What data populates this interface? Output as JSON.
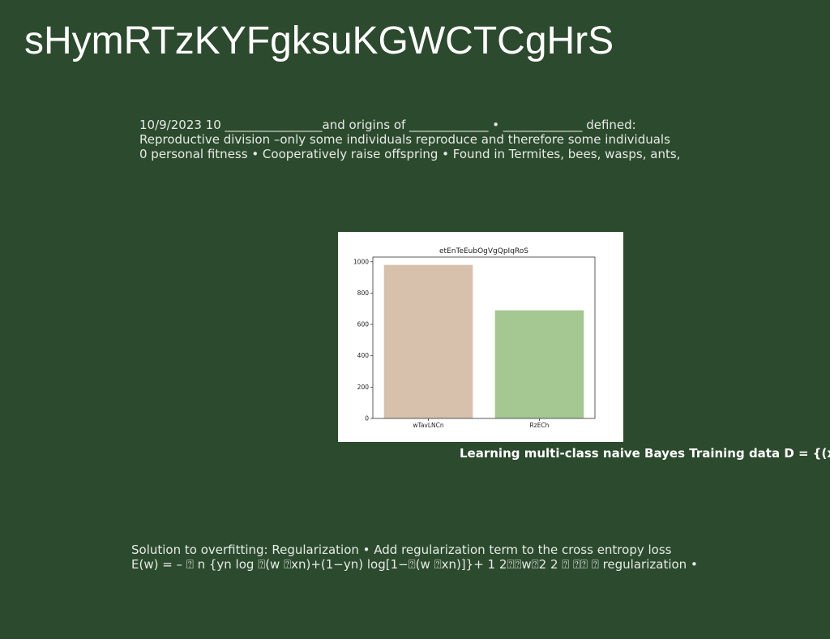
{
  "slide": {
    "title": "sHymRTzKYFgksuKGWCTCgHrS",
    "paragraph1": [
      "10/9/2023 10 ________________and origins of _____________ • _____________ defined:",
      "Reproductive division –only some individuals reproduce and therefore some individuals",
      "0 personal fitness • Cooperatively raise offspring • Found in Termites, bees, wasps, ants,"
    ],
    "heading2": "Learning multi-class naive Bayes Training data D = {(xn,",
    "paragraph3": [
      "Solution to overfitting: Regularization • Add regularization term to the cross entropy loss",
      "E(w) = – ⍰ n {yn log ⍰(w ⍰xn)+(1−yn) log[1−⍰(w ⍰xn)]}+ 1 2⍰⍰w⍰2 2 ⍰ ⍰⍰ ⍰ regularization •"
    ]
  },
  "chart_data": {
    "type": "bar",
    "title": "etEnTeEubOgVgQpIqRoS",
    "categories": [
      "wTavLNCn",
      "RzECh"
    ],
    "values": [
      980,
      690
    ],
    "colors": [
      "#d7c1ad",
      "#a5c893"
    ],
    "ylim": [
      0,
      1030
    ],
    "yticks": [
      0,
      200,
      400,
      600,
      800,
      1000
    ],
    "xlabel": "",
    "ylabel": "",
    "grid": false
  }
}
